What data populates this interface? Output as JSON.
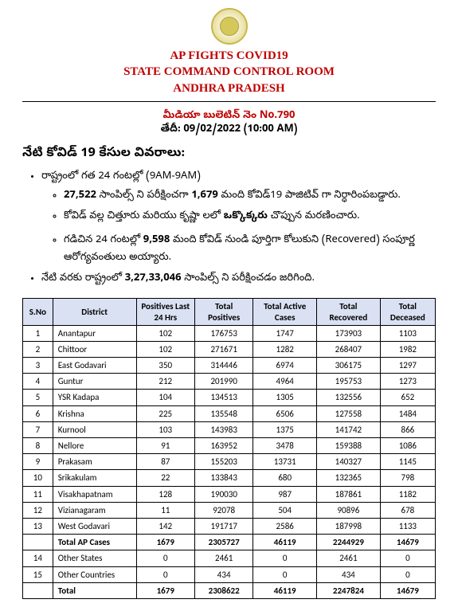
{
  "header": {
    "line1": "AP FIGHTS COVID19",
    "line2": "STATE COMMAND CONTROL ROOM",
    "line3": "ANDHRA PRADESH"
  },
  "bulletin": {
    "no": "మీడియా బులెటిన్ నెం No.790",
    "date": "తేదీ: 09/02/2022 (10:00 AM)"
  },
  "section_title": "నేటి కోవిడ్ 19 కేసుల వివరాలు:",
  "bullet1": "రాష్ట్రంలో గత 24 గంటల్లో (9AM-9AM)",
  "sub1_a": "27,522",
  "sub1_b": " సాంపిల్స్ ని పరీక్షించగా ",
  "sub1_c": "1,679",
  "sub1_d": " మంది కోవిడ్19 పాజిటివ్ గా నిర్ధారింపబడ్డారు.",
  "sub2_a": "కోవిడ్ వల్ల  చిత్తూరు మరియు కృష్ణా లలో ",
  "sub2_b": "ఒక్కొక్కరు",
  "sub2_c": " చొప్పున మరణించారు.",
  "sub3_a": "గడిచిన 24 గంటల్లో ",
  "sub3_b": "9,598",
  "sub3_c": " మంది కోవిడ్ నుండి పూర్తిగా కోలుకుని (Recovered) సంపూర్ణ ఆరోగ్యవంతులు అయ్యారు.",
  "bullet2_a": "నేటి వరకు రాష్ట్రంలో ",
  "bullet2_b": "3,27,33,046",
  "bullet2_c": " సాంపిల్స్ ని పరీక్షించడం జరిగింది.",
  "table": {
    "columns": [
      "S.No",
      "District",
      "Positives Last 24 Hrs",
      "Total Positives",
      "Total Active Cases",
      "Total Recovered",
      "Total Deceased"
    ],
    "rows": [
      [
        "1",
        "Anantapur",
        "102",
        "176753",
        "1747",
        "173903",
        "1103"
      ],
      [
        "2",
        "Chittoor",
        "102",
        "271671",
        "1282",
        "268407",
        "1982"
      ],
      [
        "3",
        "East Godavari",
        "350",
        "314446",
        "6974",
        "306175",
        "1297"
      ],
      [
        "4",
        "Guntur",
        "212",
        "201990",
        "4964",
        "195753",
        "1273"
      ],
      [
        "5",
        "YSR Kadapa",
        "104",
        "134513",
        "1305",
        "132556",
        "652"
      ],
      [
        "6",
        "Krishna",
        "225",
        "135548",
        "6506",
        "127558",
        "1484"
      ],
      [
        "7",
        "Kurnool",
        "103",
        "143983",
        "1375",
        "141742",
        "866"
      ],
      [
        "8",
        "Nellore",
        "91",
        "163952",
        "3478",
        "159388",
        "1086"
      ],
      [
        "9",
        "Prakasam",
        "87",
        "155203",
        "13731",
        "140327",
        "1145"
      ],
      [
        "10",
        "Srikakulam",
        "22",
        "133843",
        "680",
        "132365",
        "798"
      ],
      [
        "11",
        "Visakhapatnam",
        "128",
        "190030",
        "987",
        "187861",
        "1182"
      ],
      [
        "12",
        "Vizianagaram",
        "11",
        "92078",
        "504",
        "90896",
        "678"
      ],
      [
        "13",
        "West Godavari",
        "142",
        "191717",
        "2586",
        "187998",
        "1133"
      ]
    ],
    "subtotal": [
      "",
      "Total AP Cases",
      "1679",
      "2305727",
      "46119",
      "2244929",
      "14679"
    ],
    "extra": [
      [
        "14",
        "Other States",
        "0",
        "2461",
        "0",
        "2461",
        "0"
      ],
      [
        "15",
        "Other Countries",
        "0",
        "434",
        "0",
        "434",
        "0"
      ]
    ],
    "total": [
      "",
      "Total",
      "1679",
      "2308622",
      "46119",
      "2247824",
      "14679"
    ]
  }
}
